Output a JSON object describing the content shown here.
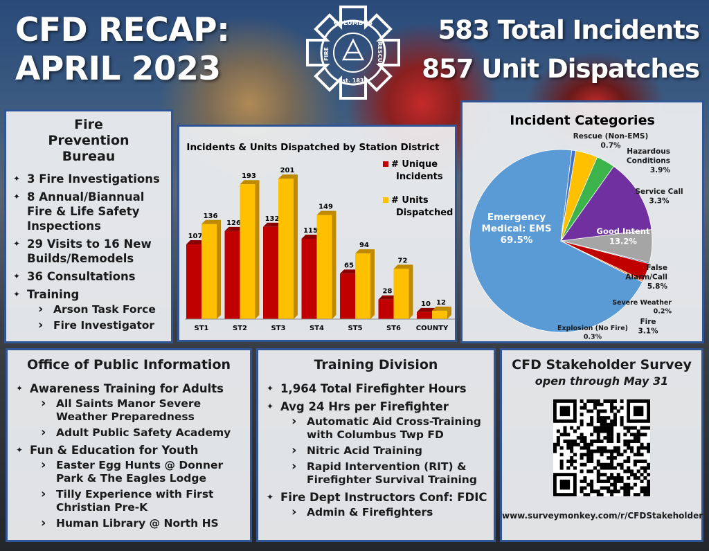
{
  "header": {
    "title_line1": "CFD RECAP:",
    "title_line2": "APRIL 2023",
    "stat1": "583 Total Incidents",
    "stat2": "857 Unit Dispatches"
  },
  "logo": {
    "top_text": "COLUMBUS",
    "left_text": "FIRE",
    "right_text": "RESCUE",
    "bottom_text": "Est. 1835"
  },
  "fire_prevention": {
    "title": "Fire Prevention Bureau",
    "items": [
      {
        "text": "3 Fire Investigations",
        "sub": []
      },
      {
        "text": "8 Annual/Biannual Fire & Life Safety Inspections",
        "sub": []
      },
      {
        "text": "29 Visits to 16 New Builds/Remodels",
        "sub": []
      },
      {
        "text": "36 Consultations",
        "sub": []
      },
      {
        "text": "Training",
        "sub": [
          "Arson Task Force",
          "Fire Investigator"
        ]
      }
    ]
  },
  "colors": {
    "incidents": "#c00000",
    "units": "#ffc000",
    "panel_border": "#2f5597"
  },
  "chart_data": [
    {
      "type": "bar",
      "title": "Incidents & Units Dispatched by Station District",
      "categories": [
        "ST1",
        "ST2",
        "ST3",
        "ST4",
        "ST5",
        "ST6",
        "COUNTY"
      ],
      "series": [
        {
          "name": "# Unique Incidents",
          "values": [
            107,
            126,
            132,
            115,
            65,
            28,
            10
          ]
        },
        {
          "name": "# Units Dispatched",
          "values": [
            136,
            193,
            201,
            149,
            94,
            72,
            12
          ]
        }
      ],
      "ylim": [
        0,
        220
      ],
      "legend": "right",
      "grid": false
    },
    {
      "type": "pie",
      "title": "Incident Categories",
      "slices": [
        {
          "label": "Emergency Medical: EMS",
          "value": 69.5,
          "display": "69.5%",
          "color": "#5b9bd5"
        },
        {
          "label": "Rescue (Non-EMS)",
          "value": 0.7,
          "display": "0.7%",
          "color": "#4472c4"
        },
        {
          "label": "Hazardous Conditions",
          "value": 3.9,
          "display": "3.9%",
          "color": "#ffc000"
        },
        {
          "label": "Service Call",
          "value": 3.3,
          "display": "3.3%",
          "color": "#3cb44b"
        },
        {
          "label": "Good Intent",
          "value": 13.2,
          "display": "13.2%",
          "color": "#7030a0"
        },
        {
          "label": "False Alarm/Call",
          "value": 5.8,
          "display": "5.8%",
          "color": "#a5a5a5"
        },
        {
          "label": "Severe Weather",
          "value": 0.2,
          "display": "0.2%",
          "color": "#264478"
        },
        {
          "label": "Fire",
          "value": 3.1,
          "display": "3.1%",
          "color": "#c00000"
        },
        {
          "label": "Explosion (No Fire)",
          "value": 0.3,
          "display": "0.3%",
          "color": "#ed7d31"
        }
      ]
    }
  ],
  "public_info": {
    "title": "Office of Public Information",
    "items": [
      {
        "text": "Awareness Training for Adults",
        "sub": [
          "All Saints Manor Severe Weather Preparedness",
          "Adult Public Safety Academy"
        ]
      },
      {
        "text": "Fun & Education for Youth",
        "sub": [
          "Easter Egg Hunts @ Donner Park & The Eagles Lodge",
          "Tilly Experience with First Christian Pre-K",
          "Human Library @ North HS"
        ]
      }
    ]
  },
  "training": {
    "title": "Training Division",
    "items": [
      {
        "text": "1,964 Total Firefighter Hours",
        "sub": []
      },
      {
        "text": "Avg 24 Hrs per Firefighter",
        "sub": [
          "Automatic Aid Cross-Training with Columbus Twp FD",
          "Nitric Acid Training",
          "Rapid Intervention (RIT) & Firefighter Survival Training"
        ]
      },
      {
        "text": "Fire Dept Instructors Conf: FDIC",
        "sub": [
          "Admin & Firefighters"
        ]
      }
    ]
  },
  "survey": {
    "title": "CFD Stakeholder Survey",
    "subtitle": "open through May 31",
    "url": "www.surveymonkey.com/r/CFDStakeholder"
  }
}
